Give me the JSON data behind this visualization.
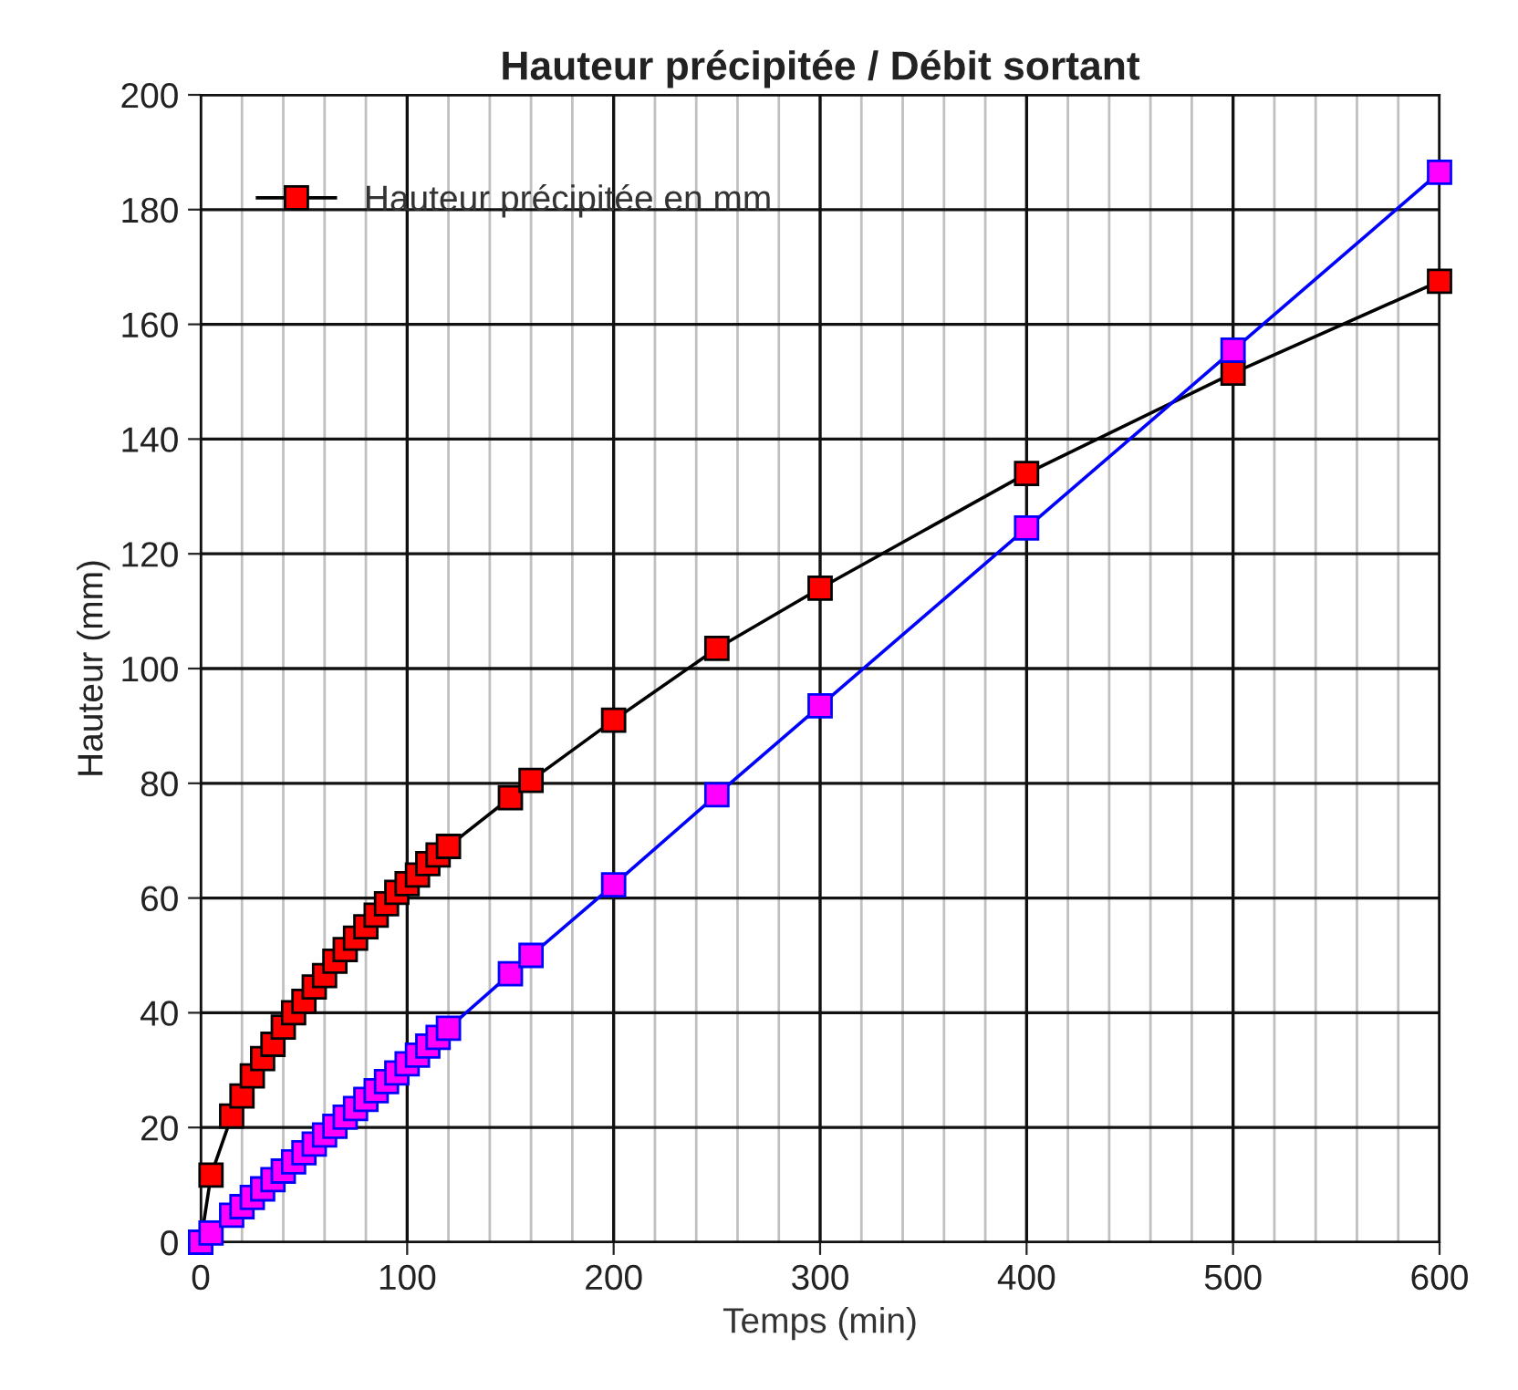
{
  "chart_data": {
    "type": "line",
    "title": "Hauteur précipitée / Débit sortant",
    "xlabel": "Temps (min)",
    "ylabel": "Hauteur (mm)",
    "xlim": [
      0,
      600
    ],
    "xticks": [
      0,
      100,
      200,
      300,
      400,
      500,
      600
    ],
    "ylim": [
      0,
      200
    ],
    "yticks": [
      0,
      20,
      40,
      60,
      80,
      100,
      120,
      140,
      160,
      180,
      200
    ],
    "grid": true,
    "legend": "top left",
    "marker": "square",
    "line_style": "solid",
    "series": [
      {
        "name": "Hauteur précipitée en mm",
        "color": "#ff0000",
        "x": [
          0,
          5,
          15,
          20,
          25,
          30,
          35,
          40,
          45,
          50,
          55,
          60,
          65,
          70,
          75,
          80,
          85,
          90,
          95,
          100,
          105,
          110,
          115,
          120,
          150,
          160,
          200,
          250,
          300,
          400,
          500,
          600
        ],
        "values": [
          0,
          11.7,
          22,
          25.5,
          29,
          32,
          34.5,
          37.5,
          40,
          42,
          44.5,
          46.5,
          49,
          51,
          53,
          55,
          57,
          59,
          61,
          62.5,
          64,
          66,
          67.5,
          69,
          77.5,
          80.5,
          91,
          103.5,
          114,
          134,
          151.5,
          167.5
        ]
      },
      {
        "color": "#ff00ff",
        "x": [
          0,
          5,
          15,
          20,
          25,
          30,
          35,
          40,
          45,
          50,
          55,
          60,
          65,
          70,
          75,
          80,
          85,
          90,
          95,
          100,
          105,
          110,
          115,
          120,
          150,
          160,
          200,
          250,
          300,
          400,
          500,
          600
        ],
        "values": [
          0,
          1.6,
          4.7,
          6.2,
          7.8,
          9.3,
          10.9,
          12.4,
          14.0,
          15.6,
          17.1,
          18.7,
          20.2,
          21.8,
          23.3,
          24.9,
          26.4,
          28.0,
          29.5,
          31.1,
          32.6,
          34.2,
          35.7,
          37.3,
          46.8,
          50,
          62.3,
          78,
          93.5,
          124.5,
          155.5,
          186.5
        ]
      }
    ]
  }
}
